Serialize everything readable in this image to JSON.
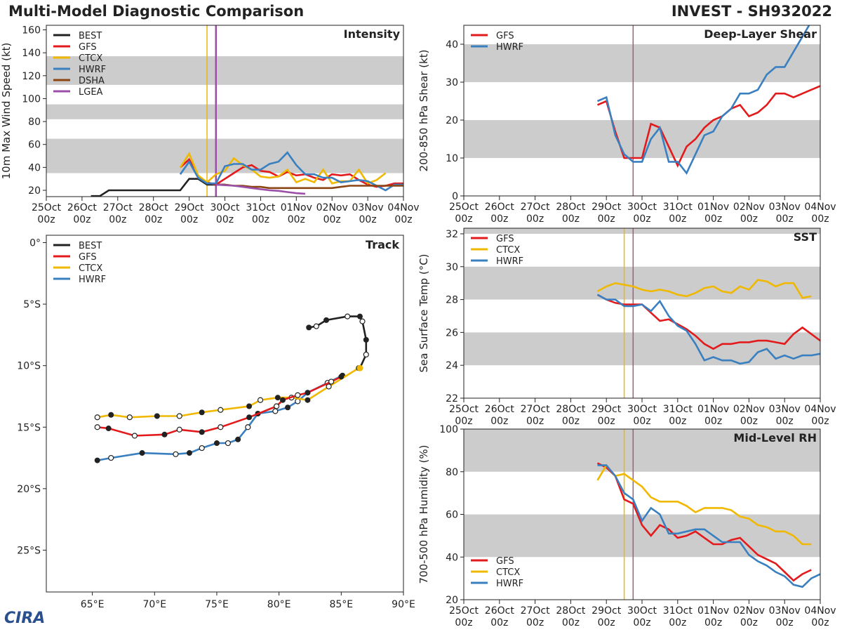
{
  "header": {
    "title": "Multi-Model Diagnostic Comparison",
    "storm": "INVEST - SH932022"
  },
  "logo": "CIRA",
  "colors": {
    "BEST": "#222222",
    "GFS": "#e31a1c",
    "CTCX": "#f0b800",
    "HWRF": "#3a80c0",
    "DSHA": "#8b4513",
    "LGEA": "#9b4fa8",
    "band": "#cccccc"
  },
  "time_axis": {
    "labels": [
      "25Oct",
      "26Oct",
      "27Oct",
      "28Oct",
      "29Oct",
      "30Oct",
      "31Oct",
      "01Nov",
      "02Nov",
      "03Nov",
      "04Nov"
    ],
    "hour": "00z"
  },
  "chart_data": [
    {
      "type": "line",
      "title": "Intensity",
      "ylabel": "10m Max Wind Speed (kt)",
      "ylim": [
        14.5,
        164
      ],
      "yticks": [
        20,
        40,
        60,
        80,
        100,
        120,
        140,
        160
      ],
      "bands": [
        [
          35,
          65
        ],
        [
          82,
          95
        ],
        [
          112,
          137
        ]
      ],
      "vlines": [
        {
          "time": "29Oct12z",
          "color": "CTCX"
        },
        {
          "time": "29Oct18z",
          "color": "LGEA"
        }
      ],
      "legend": [
        "BEST",
        "GFS",
        "CTCX",
        "HWRF",
        "DSHA",
        "LGEA"
      ],
      "series": [
        {
          "name": "BEST",
          "t0": "26Oct06z",
          "interval_h": 6,
          "values": [
            15,
            15,
            20,
            20,
            20,
            20,
            20,
            20,
            20,
            20,
            20,
            30,
            30,
            25,
            25,
            25
          ]
        },
        {
          "name": "GFS",
          "t0": "28Oct18z",
          "interval_h": 6,
          "values": [
            40,
            47,
            32,
            27,
            25,
            30,
            35,
            40,
            42,
            37,
            36,
            32,
            36,
            33,
            34,
            31,
            29,
            34,
            33,
            34,
            29,
            25,
            23,
            24,
            26,
            26
          ]
        },
        {
          "name": "CTCX",
          "t0": "28Oct18z",
          "interval_h": 6,
          "values": [
            40,
            52,
            33,
            27,
            34,
            37,
            48,
            42,
            38,
            32,
            31,
            32,
            38,
            27,
            30,
            27,
            38,
            26,
            28,
            28,
            38,
            26,
            29,
            35
          ]
        },
        {
          "name": "HWRF",
          "t0": "28Oct18z",
          "interval_h": 6,
          "values": [
            34,
            45,
            31,
            26,
            26,
            41,
            43,
            43,
            38,
            38,
            43,
            45,
            53,
            42,
            34,
            34,
            31,
            31,
            27,
            28,
            29,
            28,
            24,
            20,
            25,
            25
          ]
        },
        {
          "name": "DSHA",
          "t0": "29Oct18z",
          "interval_h": 6,
          "values": [
            25,
            25,
            24,
            24,
            23,
            23,
            22,
            22,
            22,
            22,
            22,
            22,
            22,
            22,
            23,
            24,
            24,
            24,
            24,
            24,
            24,
            24,
            24
          ]
        },
        {
          "name": "LGEA",
          "t0": "29Oct18z",
          "interval_h": 6,
          "values": [
            25,
            24.5,
            24,
            23,
            22,
            21,
            20,
            19.5,
            18.5,
            17.5,
            17
          ]
        }
      ]
    },
    {
      "type": "line",
      "title": "Deep-Layer Shear",
      "ylabel": "200-850 hPa Shear (kt)",
      "ylim": [
        0,
        45
      ],
      "yticks": [
        0,
        10,
        20,
        30,
        40
      ],
      "bands": [
        [
          10,
          20
        ],
        [
          30,
          40
        ]
      ],
      "vlines": [
        {
          "time": "29Oct18z",
          "color": "#8a6a7a"
        }
      ],
      "legend": [
        "GFS",
        "HWRF"
      ],
      "series": [
        {
          "name": "GFS",
          "t0": "28Oct18z",
          "interval_h": 6,
          "values": [
            24,
            25,
            17,
            10,
            10,
            10,
            19,
            18,
            13,
            8,
            13,
            15,
            18,
            20,
            21,
            23,
            24,
            21,
            22,
            24,
            27,
            27,
            26,
            27,
            28,
            29
          ]
        },
        {
          "name": "HWRF",
          "t0": "28Oct18z",
          "interval_h": 6,
          "values": [
            25,
            26,
            16,
            11,
            9,
            9,
            15,
            18,
            9,
            9,
            6,
            11,
            16,
            17,
            21,
            23,
            27,
            27,
            28,
            32,
            34,
            34,
            38,
            42,
            46
          ]
        }
      ]
    },
    {
      "type": "line",
      "title": "SST",
      "ylabel": "Sea Surface Temp (°C)",
      "ylim": [
        22,
        32.34
      ],
      "yticks": [
        22,
        24,
        26,
        28,
        30,
        32
      ],
      "bands": [
        [
          24,
          26
        ],
        [
          28,
          30
        ],
        [
          32,
          34
        ]
      ],
      "vlines": [
        {
          "time": "29Oct12z",
          "color": "CTCX"
        },
        {
          "time": "29Oct18z",
          "color": "#8a6a7a"
        }
      ],
      "legend": [
        "GFS",
        "CTCX",
        "HWRF"
      ],
      "series": [
        {
          "name": "GFS",
          "t0": "28Oct18z",
          "interval_h": 6,
          "values": [
            28.3,
            28.0,
            27.8,
            27.7,
            27.7,
            27.7,
            27.2,
            26.7,
            26.8,
            26.5,
            26.2,
            25.8,
            25.3,
            25.0,
            25.3,
            25.3,
            25.4,
            25.4,
            25.5,
            25.5,
            25.4,
            25.3,
            25.9,
            26.3,
            25.9,
            25.5
          ]
        },
        {
          "name": "CTCX",
          "t0": "28Oct18z",
          "interval_h": 6,
          "values": [
            28.5,
            28.8,
            29.0,
            28.9,
            28.8,
            28.6,
            28.5,
            28.6,
            28.5,
            28.3,
            28.2,
            28.4,
            28.7,
            28.8,
            28.5,
            28.4,
            28.8,
            28.6,
            29.2,
            29.1,
            28.8,
            29.0,
            29.0,
            28.1,
            28.2
          ]
        },
        {
          "name": "HWRF",
          "t0": "28Oct18z",
          "interval_h": 6,
          "values": [
            28.3,
            28.0,
            28.0,
            27.6,
            27.6,
            27.7,
            27.3,
            27.9,
            27.0,
            26.4,
            26.1,
            25.3,
            24.3,
            24.5,
            24.3,
            24.3,
            24.1,
            24.2,
            24.8,
            25.0,
            24.4,
            24.6,
            24.4,
            24.6,
            24.6,
            24.7
          ]
        }
      ]
    },
    {
      "type": "line",
      "title": "Mid-Level RH",
      "ylabel": "700-500 hPa Humidity (%)",
      "ylim": [
        20,
        100
      ],
      "yticks": [
        20,
        40,
        60,
        80,
        100
      ],
      "bands": [
        [
          40,
          60
        ],
        [
          80,
          100
        ]
      ],
      "vlines": [
        {
          "time": "29Oct12z",
          "color": "CTCX"
        },
        {
          "time": "29Oct18z",
          "color": "#8a6a7a"
        }
      ],
      "legend": [
        "GFS",
        "CTCX",
        "HWRF"
      ],
      "legend_position": "bottom-left",
      "series": [
        {
          "name": "GFS",
          "t0": "28Oct18z",
          "interval_h": 6,
          "values": [
            84,
            82,
            78,
            67,
            65,
            55,
            50,
            55,
            53,
            49,
            50,
            52,
            49,
            46,
            46,
            48,
            49,
            45,
            41,
            39,
            37,
            33,
            29,
            32,
            34
          ]
        },
        {
          "name": "CTCX",
          "t0": "28Oct18z",
          "interval_h": 6,
          "values": [
            76,
            83,
            78,
            79,
            76,
            73,
            68,
            66,
            66,
            66,
            64,
            61,
            63,
            63,
            63,
            62,
            59,
            58,
            55,
            54,
            52,
            52,
            50,
            46,
            46
          ]
        },
        {
          "name": "HWRF",
          "t0": "28Oct18z",
          "interval_h": 6,
          "values": [
            83,
            83,
            78,
            70,
            67,
            57,
            63,
            60,
            51,
            51,
            52,
            53,
            53,
            50,
            47,
            47,
            47,
            41,
            38,
            36,
            33,
            31,
            27,
            26,
            30,
            32
          ]
        }
      ]
    },
    {
      "type": "map-track",
      "title": "Track",
      "xlim": [
        61.3,
        90
      ],
      "ylim": [
        -28.4,
        0.6
      ],
      "xticks": [
        "65°E",
        "70°E",
        "75°E",
        "80°E",
        "85°E",
        "90°E"
      ],
      "xtick_values": [
        65,
        70,
        75,
        80,
        85,
        90
      ],
      "yticks": [
        "0°",
        "5°S",
        "10°S",
        "15°S",
        "20°S",
        "25°S"
      ],
      "ytick_values": [
        0,
        -5,
        -10,
        -15,
        -20,
        -25
      ],
      "legend": [
        "BEST",
        "GFS",
        "CTCX",
        "HWRF"
      ],
      "series": [
        {
          "name": "BEST",
          "points": [
            [
              82.4,
              -6.9
            ],
            [
              83.0,
              -6.8
            ],
            [
              83.8,
              -6.3
            ],
            [
              85.5,
              -6.0
            ],
            [
              86.5,
              -6.0
            ],
            [
              86.7,
              -6.4
            ],
            [
              87.0,
              -7.9
            ],
            [
              87.0,
              -9.1
            ],
            [
              86.5,
              -10.2
            ]
          ]
        },
        {
          "name": "GFS",
          "points": [
            [
              85.0,
              -10.9
            ],
            [
              84.2,
              -11.3
            ],
            [
              82.3,
              -12.2
            ],
            [
              81.5,
              -12.4
            ],
            [
              80.3,
              -12.8
            ],
            [
              79.8,
              -13.3
            ],
            [
              77.6,
              -14.2
            ],
            [
              75.3,
              -15.0
            ],
            [
              73.8,
              -15.4
            ],
            [
              72.0,
              -15.2
            ],
            [
              70.8,
              -15.6
            ],
            [
              68.4,
              -15.7
            ],
            [
              66.3,
              -15.1
            ],
            [
              65.4,
              -15.0
            ]
          ]
        },
        {
          "name": "CTCX",
          "points": [
            [
              86.4,
              -10.2
            ],
            [
              84.0,
              -11.7
            ],
            [
              82.3,
              -12.8
            ],
            [
              81.0,
              -12.6
            ],
            [
              79.9,
              -12.6
            ],
            [
              78.5,
              -12.8
            ],
            [
              77.6,
              -13.3
            ],
            [
              75.3,
              -13.6
            ],
            [
              73.8,
              -13.8
            ],
            [
              72.0,
              -14.1
            ],
            [
              70.2,
              -14.1
            ],
            [
              68.0,
              -14.2
            ],
            [
              66.5,
              -14.0
            ],
            [
              65.4,
              -14.2
            ]
          ]
        },
        {
          "name": "HWRF",
          "points": [
            [
              85.1,
              -10.8
            ],
            [
              83.9,
              -11.4
            ],
            [
              82.3,
              -12.2
            ],
            [
              81.5,
              -12.9
            ],
            [
              80.7,
              -13.4
            ],
            [
              79.7,
              -13.7
            ],
            [
              78.3,
              -13.9
            ],
            [
              77.5,
              -15.0
            ],
            [
              76.7,
              -16.0
            ],
            [
              75.9,
              -16.3
            ],
            [
              75.0,
              -16.3
            ],
            [
              73.8,
              -16.7
            ],
            [
              72.8,
              -17.1
            ],
            [
              71.7,
              -17.2
            ],
            [
              69.0,
              -17.1
            ],
            [
              66.5,
              -17.5
            ],
            [
              65.4,
              -17.7
            ]
          ]
        }
      ]
    }
  ]
}
